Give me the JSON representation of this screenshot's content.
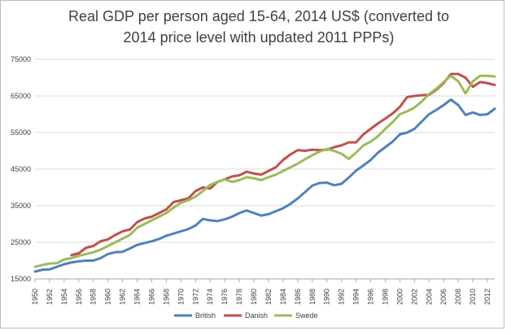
{
  "chart_data": {
    "type": "line",
    "title": "Real GDP per person aged 15-64, 2014 US$ (converted to 2014 price level with updated 2011 PPPs)",
    "title_lines": [
      "Real GDP per person aged 15-64, 2014 US$ (converted to",
      "2014 price level with updated 2011 PPPs)"
    ],
    "xlabel": "",
    "ylabel": "",
    "ylim": [
      15000,
      75000
    ],
    "yticks": [
      15000,
      25000,
      35000,
      45000,
      55000,
      65000,
      75000
    ],
    "ytick_labels": [
      "15000",
      "25000",
      "35000",
      "45000",
      "55000",
      "65000",
      "75000"
    ],
    "xlim": [
      1950,
      2013
    ],
    "xticks": [
      1950,
      1952,
      1954,
      1956,
      1958,
      1960,
      1962,
      1964,
      1966,
      1968,
      1970,
      1972,
      1974,
      1976,
      1978,
      1980,
      1982,
      1984,
      1986,
      1988,
      1990,
      1992,
      1994,
      1996,
      1998,
      2000,
      2002,
      2004,
      2006,
      2008,
      2010,
      2012
    ],
    "xtick_labels": [
      "1950",
      "1952",
      "1954",
      "1956",
      "1958",
      "1960",
      "1962",
      "1964",
      "1966",
      "1968",
      "1970",
      "1972",
      "1974",
      "1976",
      "1978",
      "1980",
      "1982",
      "1984",
      "1986",
      "1988",
      "1990",
      "1992",
      "1994",
      "1996",
      "1998",
      "2000",
      "2002",
      "2004",
      "2006",
      "2008",
      "2010",
      "2012"
    ],
    "grid": true,
    "legend_position": "bottom",
    "x": [
      1950,
      1951,
      1952,
      1953,
      1954,
      1955,
      1956,
      1957,
      1958,
      1959,
      1960,
      1961,
      1962,
      1963,
      1964,
      1965,
      1966,
      1967,
      1968,
      1969,
      1970,
      1971,
      1972,
      1973,
      1974,
      1975,
      1976,
      1977,
      1978,
      1979,
      1980,
      1981,
      1982,
      1983,
      1984,
      1985,
      1986,
      1987,
      1988,
      1989,
      1990,
      1991,
      1992,
      1993,
      1994,
      1995,
      1996,
      1997,
      1998,
      1999,
      2000,
      2001,
      2002,
      2003,
      2004,
      2005,
      2006,
      2007,
      2008,
      2009,
      2010,
      2011,
      2012,
      2013
    ],
    "series": [
      {
        "name": "British",
        "color": "#4f81bd",
        "values": [
          17000,
          17500,
          17600,
          18300,
          19000,
          19500,
          19800,
          20000,
          20000,
          20700,
          21800,
          22300,
          22400,
          23300,
          24300,
          24800,
          25300,
          25900,
          26800,
          27400,
          28000,
          28600,
          29600,
          31400,
          31000,
          30800,
          31300,
          32000,
          33000,
          33700,
          33000,
          32300,
          32700,
          33500,
          34300,
          35500,
          37000,
          38700,
          40500,
          41200,
          41300,
          40600,
          41000,
          42700,
          44600,
          46000,
          47500,
          49500,
          51000,
          52500,
          54500,
          55000,
          56000,
          58000,
          60000,
          61200,
          62500,
          64000,
          62500,
          59800,
          60500,
          59800,
          60000,
          61500
        ]
      },
      {
        "name": "Danish",
        "color": "#c0504d",
        "values": [
          null,
          null,
          null,
          null,
          null,
          21500,
          22000,
          23500,
          24000,
          25300,
          25800,
          27000,
          28000,
          28500,
          30500,
          31500,
          32000,
          33000,
          34000,
          36000,
          36500,
          37000,
          39000,
          40000,
          39700,
          41500,
          42200,
          43000,
          43300,
          44300,
          43800,
          43500,
          44500,
          45500,
          47500,
          49000,
          50200,
          50000,
          50300,
          50200,
          50300,
          51000,
          51500,
          52300,
          52300,
          54500,
          56000,
          57500,
          58800,
          60200,
          62000,
          64700,
          65000,
          65200,
          65300,
          66700,
          68500,
          71000,
          71000,
          70000,
          67500,
          68800,
          68500,
          68000
        ]
      },
      {
        "name": "Swede",
        "color": "#9bbb59",
        "values": [
          18300,
          18800,
          19200,
          19300,
          20300,
          20700,
          21300,
          21800,
          22300,
          23000,
          24000,
          25000,
          26000,
          27000,
          29000,
          30000,
          31000,
          32000,
          33000,
          34500,
          35800,
          36500,
          37500,
          39000,
          40700,
          41500,
          42200,
          41500,
          42000,
          42800,
          42500,
          42000,
          42800,
          43500,
          44500,
          45500,
          46500,
          47700,
          48800,
          49800,
          50500,
          50000,
          49200,
          47800,
          49500,
          51500,
          52500,
          54000,
          56000,
          57800,
          60000,
          60800,
          61800,
          63500,
          65500,
          67000,
          68800,
          70500,
          69000,
          65700,
          69000,
          70500,
          70500,
          70300
        ]
      }
    ]
  }
}
